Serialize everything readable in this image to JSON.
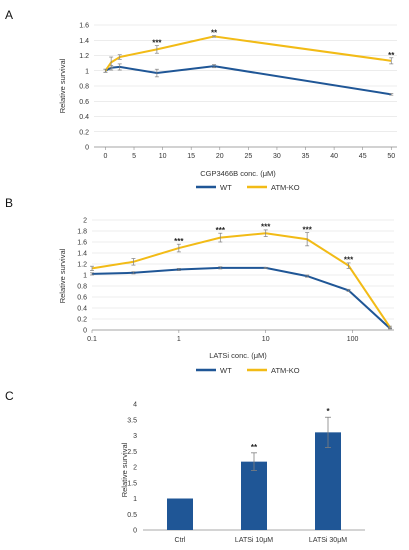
{
  "colors": {
    "wt": "#1f5696",
    "ko": "#f2bb16",
    "grid": "#d9d9d9",
    "axis": "#8c8c8c",
    "bar": "#1f5696",
    "err": "#7f7f7f"
  },
  "chart_data": [
    {
      "panel": "A",
      "type": "line",
      "xlabel": "CGP3466B conc. (μM)",
      "ylabel": "Relative survival",
      "xlim": [
        -2,
        51
      ],
      "ylim": [
        0,
        1.6
      ],
      "x_ticks": [
        0,
        5,
        10,
        15,
        20,
        25,
        30,
        35,
        40,
        45,
        50
      ],
      "y_ticks": [
        "0",
        "0.2",
        "0.4",
        "0.6",
        "0.8",
        "1",
        "1.2",
        "1.4",
        "1.6"
      ],
      "grid": "horizontal",
      "legend": "bottom",
      "series": [
        {
          "name": "WT",
          "x": [
            0,
            1,
            2.5,
            9,
            19,
            50
          ],
          "y": [
            1.0,
            1.04,
            1.05,
            0.97,
            1.06,
            0.69
          ],
          "err": [
            0.02,
            0.03,
            0.04,
            0.05,
            0.02,
            0.01
          ]
        },
        {
          "name": "ATM-KO",
          "x": [
            0,
            1,
            2.5,
            9,
            19,
            50
          ],
          "y": [
            1.0,
            1.11,
            1.18,
            1.28,
            1.45,
            1.13
          ],
          "err": [
            0.02,
            0.07,
            0.03,
            0.05,
            0.01,
            0.04
          ]
        }
      ],
      "annotations": [
        {
          "text": "***",
          "x": 9,
          "y": 1.33
        },
        {
          "text": "**",
          "x": 19,
          "y": 1.46
        },
        {
          "text": "**",
          "x": 50,
          "y": 1.17
        }
      ]
    },
    {
      "panel": "B",
      "type": "line",
      "xscale": "log",
      "xlabel": "LATSi conc. (μM)",
      "ylabel": "Relative survival",
      "xlim": [
        0.1,
        300
      ],
      "ylim": [
        0,
        2
      ],
      "x_ticks": [
        "0.1",
        "1",
        "10",
        "100"
      ],
      "y_ticks": [
        "0",
        "0.2",
        "0.4",
        "0.6",
        "0.8",
        "1",
        "1.2",
        "1.4",
        "1.6",
        "1.8",
        "2"
      ],
      "grid": "horizontal",
      "legend": "bottom",
      "series": [
        {
          "name": "WT",
          "x": [
            0.1,
            0.3,
            1,
            3,
            10,
            30,
            90,
            270
          ],
          "y": [
            1.02,
            1.04,
            1.1,
            1.13,
            1.13,
            0.98,
            0.72,
            0.03
          ],
          "err": [
            0.02,
            0.02,
            0.02,
            0.02,
            0.01,
            0.02,
            0.02,
            0.01
          ]
        },
        {
          "name": "ATM-KO",
          "x": [
            0.1,
            0.3,
            1,
            3,
            10,
            30,
            90,
            270
          ],
          "y": [
            1.12,
            1.24,
            1.49,
            1.68,
            1.76,
            1.65,
            1.17,
            0.05
          ],
          "err": [
            0.04,
            0.06,
            0.07,
            0.08,
            0.06,
            0.12,
            0.05,
            0.02
          ]
        }
      ],
      "annotations": [
        {
          "text": "***",
          "x": 1,
          "y": 1.56
        },
        {
          "text": "***",
          "x": 3,
          "y": 1.76
        },
        {
          "text": "***",
          "x": 10,
          "y": 1.83
        },
        {
          "text": "***",
          "x": 30,
          "y": 1.77
        },
        {
          "text": "***",
          "x": 90,
          "y": 1.23
        }
      ]
    },
    {
      "panel": "C",
      "type": "bar",
      "ylabel": "Relative survival",
      "categories": [
        "Ctrl",
        "LATSi 10μM",
        "LATSi 30μM"
      ],
      "values": [
        1.0,
        2.17,
        3.1
      ],
      "err": [
        0.0,
        0.28,
        0.48
      ],
      "ylim": [
        0,
        4
      ],
      "y_ticks": [
        "0",
        "0.5",
        "1",
        "1.5",
        "2",
        "2.5",
        "3",
        "3.5",
        "4"
      ],
      "grid": "none",
      "annotations": [
        {
          "text": "",
          "index": 0
        },
        {
          "text": "**",
          "index": 1
        },
        {
          "text": "*",
          "index": 2
        }
      ]
    }
  ]
}
